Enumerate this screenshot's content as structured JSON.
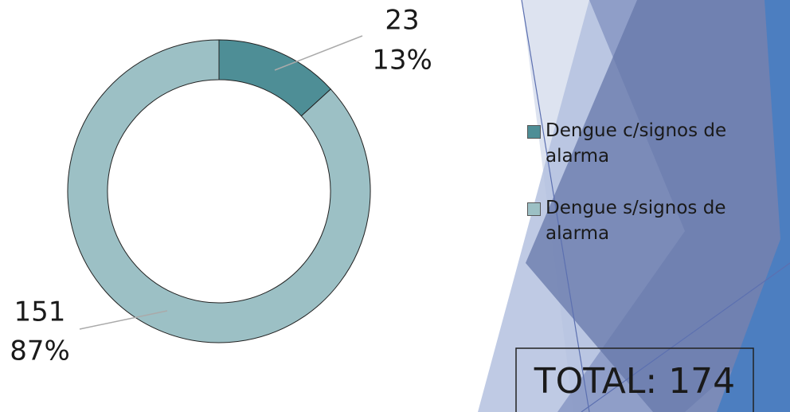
{
  "chart_data": {
    "type": "donut",
    "categories": [
      "Dengue c/signos de alarma",
      "Dengue s/signos de alarma"
    ],
    "values": [
      23,
      151
    ],
    "percent_labels": [
      "13%",
      "87%"
    ],
    "colors": [
      "#4e8e96",
      "#9cc0c5"
    ],
    "annotation": "TOTAL: 174"
  }
}
